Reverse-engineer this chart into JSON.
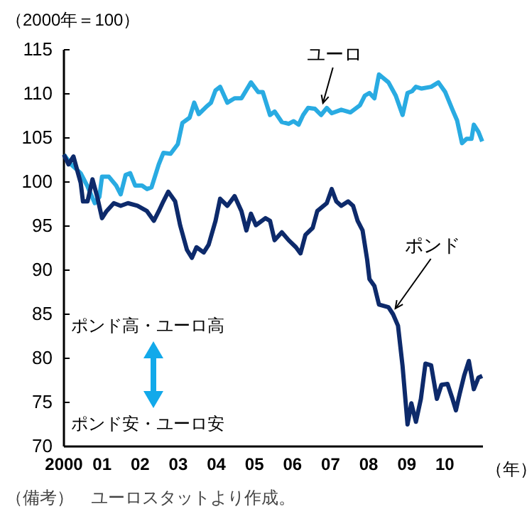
{
  "chart_data": {
    "type": "line",
    "ylabel": "（2000年＝100）",
    "xlabel": "（年）",
    "xlim": [
      2000,
      2011
    ],
    "xticks": [
      2000,
      {
        "value": 2001,
        "label": "01"
      },
      {
        "value": 2002,
        "label": "02"
      },
      {
        "value": 2003,
        "label": "03"
      },
      {
        "value": 2004,
        "label": "04"
      },
      {
        "value": 2005,
        "label": "05"
      },
      {
        "value": 2006,
        "label": "06"
      },
      {
        "value": 2007,
        "label": "07"
      },
      {
        "value": 2008,
        "label": "08"
      },
      {
        "value": 2009,
        "label": "09"
      },
      {
        "value": 2010,
        "label": "10"
      }
    ],
    "ylim": [
      70,
      115
    ],
    "yticks": [
      70,
      75,
      80,
      85,
      90,
      95,
      100,
      105,
      110,
      115
    ],
    "grid": false,
    "series": [
      {
        "color": "#29abe2",
        "x": [
          2000.0,
          2000.19,
          2000.44,
          2000.62,
          2000.81,
          2000.93,
          2001.0,
          2001.18,
          2001.37,
          2001.49,
          2001.62,
          2001.74,
          2001.87,
          2002.05,
          2002.18,
          2002.3,
          2002.49,
          2002.61,
          2002.8,
          2002.99,
          2003.11,
          2003.3,
          2003.42,
          2003.54,
          2003.73,
          2003.86,
          2003.98,
          2004.1,
          2004.29,
          2004.48,
          2004.66,
          2004.91,
          2005.1,
          2005.22,
          2005.41,
          2005.53,
          2005.72,
          2005.9,
          2006.03,
          2006.16,
          2006.28,
          2006.41,
          2006.59,
          2006.75,
          2006.9,
          2007.03,
          2007.28,
          2007.52,
          2007.77,
          2007.9,
          2008.02,
          2008.15,
          2008.27,
          2008.52,
          2008.71,
          2008.89,
          2009.02,
          2009.14,
          2009.24,
          2009.39,
          2009.64,
          2009.83,
          2010.01,
          2010.2,
          2010.32,
          2010.45,
          2010.57,
          2010.7,
          2010.76,
          2010.88,
          2010.98
        ],
        "values": [
          103.1,
          102.0,
          101.0,
          99.5,
          97.6,
          98.3,
          100.6,
          100.6,
          99.6,
          98.6,
          100.8,
          101.0,
          99.6,
          99.6,
          99.2,
          99.4,
          102.0,
          103.3,
          103.2,
          104.3,
          106.7,
          107.3,
          109.0,
          107.7,
          108.5,
          109.0,
          110.4,
          110.8,
          109.0,
          109.5,
          109.5,
          111.3,
          110.2,
          110.2,
          107.6,
          108.0,
          106.8,
          106.6,
          106.9,
          106.5,
          107.6,
          108.4,
          108.3,
          107.6,
          108.4,
          107.8,
          108.2,
          107.9,
          108.7,
          109.8,
          110.1,
          109.5,
          112.2,
          111.3,
          109.8,
          107.6,
          110.1,
          110.3,
          110.8,
          110.6,
          110.8,
          111.3,
          110.2,
          108.2,
          107.0,
          104.4,
          104.9,
          104.9,
          106.5,
          105.7,
          104.6
        ]
      },
      {
        "color": "#0d2a6b",
        "x": [
          2000.0,
          2000.12,
          2000.25,
          2000.37,
          2000.44,
          2000.5,
          2000.62,
          2000.75,
          2000.87,
          2001.0,
          2001.12,
          2001.31,
          2001.49,
          2001.68,
          2001.93,
          2002.18,
          2002.36,
          2002.49,
          2002.61,
          2002.74,
          2002.92,
          2003.05,
          2003.23,
          2003.36,
          2003.48,
          2003.67,
          2003.8,
          2003.98,
          2004.1,
          2004.29,
          2004.48,
          2004.66,
          2004.79,
          2004.91,
          2005.04,
          2005.29,
          2005.41,
          2005.53,
          2005.72,
          2005.9,
          2006.09,
          2006.21,
          2006.34,
          2006.53,
          2006.65,
          2006.9,
          2007.03,
          2007.15,
          2007.28,
          2007.46,
          2007.59,
          2007.71,
          2007.84,
          2007.96,
          2008.02,
          2008.15,
          2008.27,
          2008.52,
          2008.64,
          2008.77,
          2008.89,
          2009.02,
          2009.12,
          2009.24,
          2009.37,
          2009.49,
          2009.64,
          2009.79,
          2009.91,
          2010.07,
          2010.2,
          2010.29,
          2010.39,
          2010.51,
          2010.63,
          2010.76,
          2010.88,
          2010.98
        ],
        "values": [
          103.1,
          102.0,
          102.9,
          101.0,
          99.9,
          97.8,
          97.8,
          100.3,
          98.4,
          95.9,
          96.7,
          97.6,
          97.3,
          97.6,
          97.3,
          96.7,
          95.6,
          96.7,
          97.8,
          98.9,
          97.8,
          95.1,
          92.3,
          91.4,
          92.6,
          92.0,
          92.9,
          95.6,
          98.1,
          97.3,
          98.4,
          96.7,
          94.5,
          96.4,
          95.1,
          95.9,
          95.6,
          93.4,
          94.3,
          93.4,
          92.6,
          91.9,
          94.0,
          94.8,
          96.7,
          97.6,
          99.2,
          97.8,
          97.3,
          97.8,
          97.3,
          95.6,
          94.5,
          91.2,
          89.0,
          88.2,
          86.1,
          85.8,
          85.0,
          83.7,
          79.1,
          72.5,
          74.9,
          72.8,
          75.4,
          79.4,
          79.2,
          75.4,
          77.0,
          77.1,
          75.4,
          74.1,
          76.0,
          78.1,
          79.7,
          76.5,
          77.8,
          78.0
        ]
      }
    ],
    "annotations": [
      {
        "text": "ユーロ",
        "x": 2006.8,
        "y": 108.3
      },
      {
        "text": "ポンド",
        "x": 2008.7,
        "y": 85.0
      },
      "ポンド高・ユーロ高",
      "ポンド安・ユーロ安",
      "（備考）　ユーロスタットより作成。"
    ]
  }
}
